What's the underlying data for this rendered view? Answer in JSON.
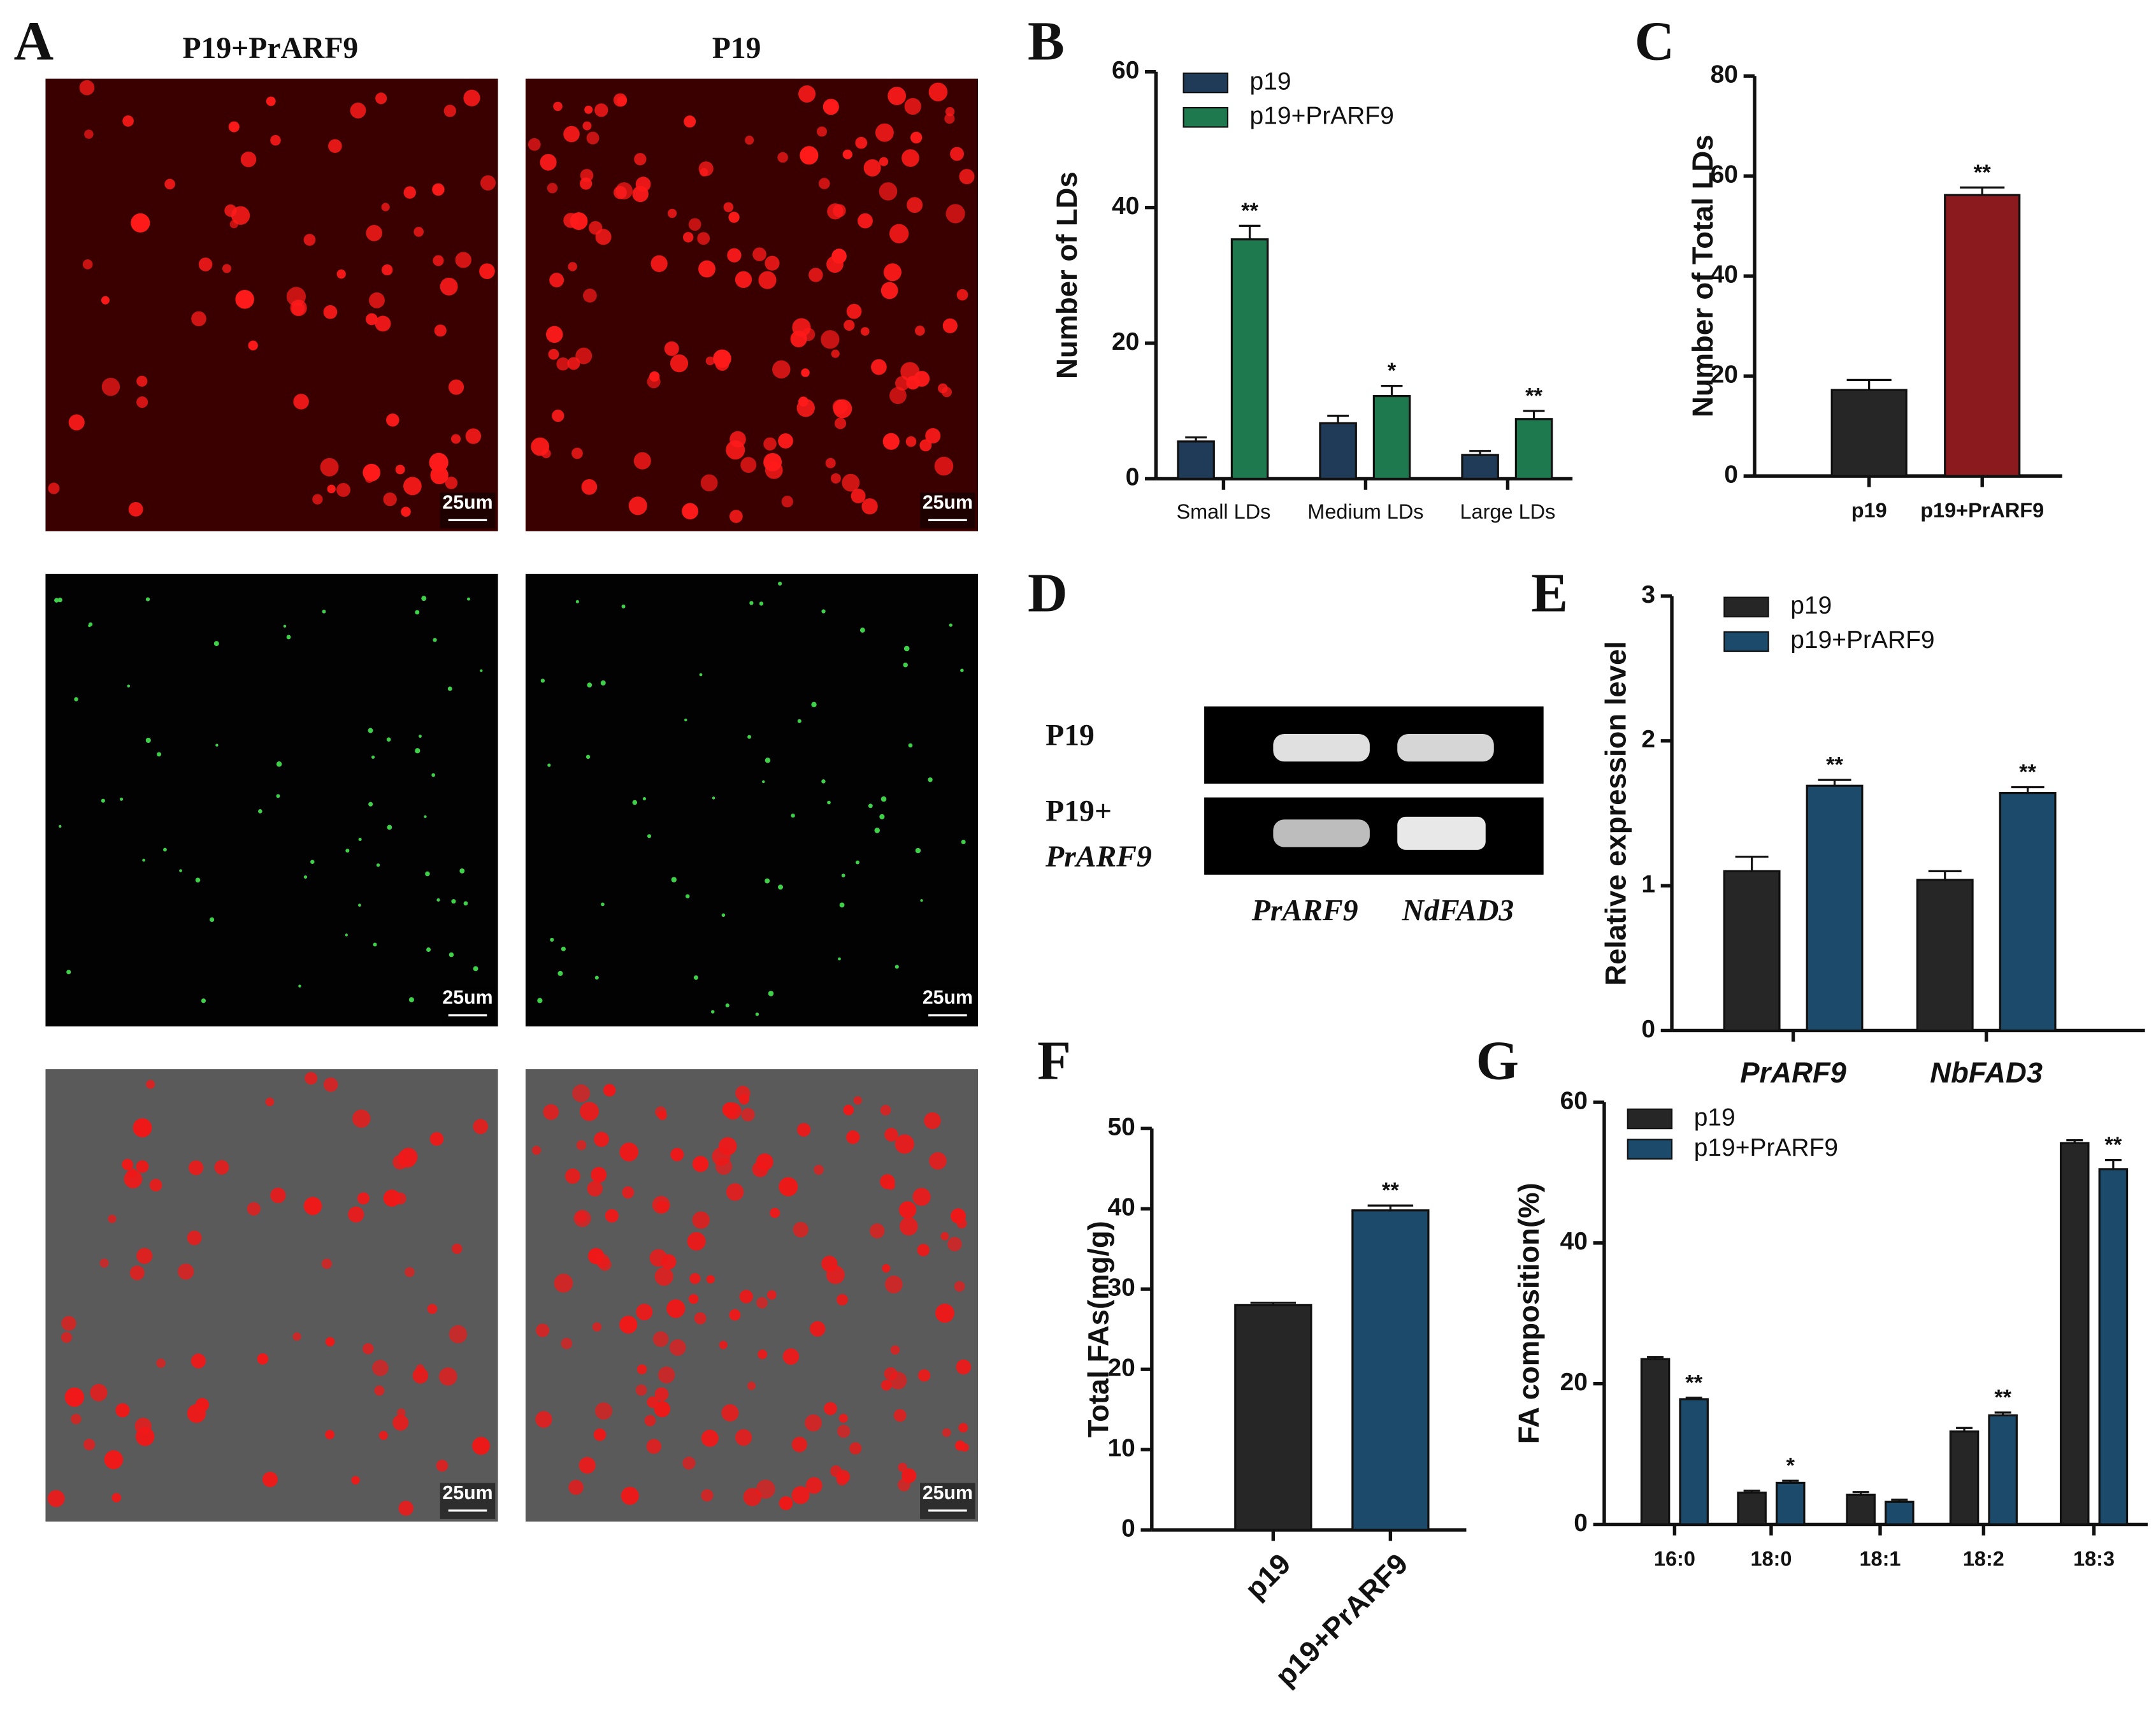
{
  "panel_a": {
    "label": "A",
    "column_titles": [
      "P19+PrARF9",
      "P19"
    ],
    "scale_labels": [
      "25um",
      "25um",
      "25um",
      "25um",
      "25um",
      "25um"
    ]
  },
  "panel_d": {
    "label": "D",
    "row_labels": [
      "P19",
      "P19+",
      "PrARF9"
    ],
    "gene_labels": [
      "PrARF9",
      "NdFAD3"
    ]
  },
  "chart_data": [
    {
      "type": "bar",
      "label": "B",
      "ylabel": "Number of LDs",
      "categories": [
        "Small LDs",
        "Medium LDs",
        "Large LDs"
      ],
      "series": [
        {
          "name": "p19",
          "color": "#1f3b57",
          "values": [
            5.5,
            8.2,
            3.5
          ],
          "errors": [
            0.6,
            1.1,
            0.6
          ]
        },
        {
          "name": "p19+PrARF9",
          "color": "#1e7a4e",
          "values": [
            35.3,
            12.2,
            8.8
          ],
          "errors": [
            2.0,
            1.5,
            1.2
          ],
          "significance": [
            "**",
            "*",
            "**"
          ]
        }
      ],
      "ylim": [
        0,
        60
      ],
      "yticks": [
        0,
        20,
        40,
        60
      ]
    },
    {
      "type": "bar",
      "label": "C",
      "ylabel": "Number of Total LDs",
      "categories": [
        "p19",
        "p19+PrARF9"
      ],
      "values": [
        17.2,
        56.2
      ],
      "errors": [
        2.0,
        1.5
      ],
      "colors": [
        "#262626",
        "#8b1a1e"
      ],
      "significance": [
        null,
        "**"
      ],
      "ylim": [
        0,
        80
      ],
      "yticks": [
        0,
        20,
        40,
        60,
        80
      ]
    },
    {
      "type": "bar",
      "label": "E",
      "ylabel": "Relative expression level",
      "categories": [
        "PrARF9",
        "NbFAD3"
      ],
      "series": [
        {
          "name": "p19",
          "color": "#262626",
          "values": [
            1.1,
            1.04
          ],
          "errors": [
            0.1,
            0.06
          ]
        },
        {
          "name": "p19+PrARF9",
          "color": "#1b4a6b",
          "values": [
            1.69,
            1.64
          ],
          "errors": [
            0.04,
            0.04
          ],
          "significance": [
            "**",
            "**"
          ]
        }
      ],
      "ylim": [
        0,
        3
      ],
      "yticks": [
        0,
        1,
        2,
        3
      ]
    },
    {
      "type": "bar",
      "label": "F",
      "ylabel": "Total FAs(mg/g)",
      "categories": [
        "p19",
        "p19+PrARF9"
      ],
      "values": [
        28.0,
        39.8
      ],
      "errors": [
        0.3,
        0.6
      ],
      "colors": [
        "#262626",
        "#1b4a6b"
      ],
      "significance": [
        null,
        "**"
      ],
      "ylim": [
        0,
        50
      ],
      "yticks": [
        0,
        10,
        20,
        30,
        40,
        50
      ]
    },
    {
      "type": "bar",
      "label": "G",
      "ylabel": "FA composition(%)",
      "categories": [
        "16:0",
        "18:0",
        "18:1",
        "18:2",
        "18:3"
      ],
      "series": [
        {
          "name": "p19",
          "color": "#262626",
          "values": [
            23.5,
            4.5,
            4.2,
            13.2,
            54.2
          ],
          "errors": [
            0.3,
            0.3,
            0.4,
            0.5,
            0.4
          ]
        },
        {
          "name": "p19+PrARF9",
          "color": "#1b4a6b",
          "values": [
            17.8,
            5.9,
            3.2,
            15.5,
            50.5
          ],
          "errors": [
            0.2,
            0.3,
            0.3,
            0.4,
            1.3
          ],
          "significance": [
            "**",
            "*",
            null,
            "**",
            "**"
          ]
        }
      ],
      "ylim": [
        0,
        60
      ],
      "yticks": [
        0,
        20,
        40,
        60
      ]
    }
  ]
}
